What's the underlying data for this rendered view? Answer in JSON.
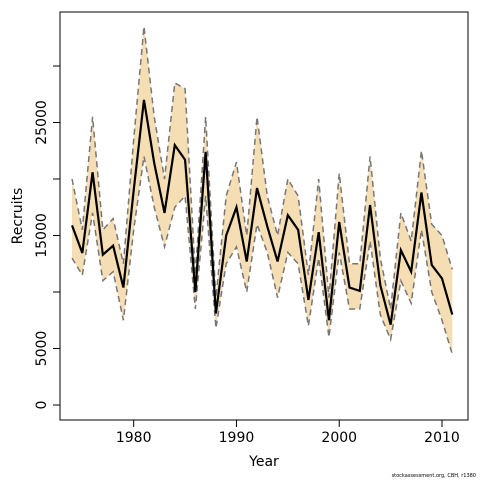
{
  "chart_data": {
    "type": "line",
    "xlabel": "Year",
    "ylabel": "Recruits",
    "footnote": "stockassessment.org, CBH, r1380",
    "x": [
      1974,
      1975,
      1976,
      1977,
      1978,
      1979,
      1980,
      1981,
      1982,
      1983,
      1984,
      1985,
      1986,
      1987,
      1988,
      1989,
      1990,
      1991,
      1992,
      1993,
      1994,
      1995,
      1996,
      1997,
      1998,
      1999,
      2000,
      2001,
      2002,
      2003,
      2004,
      2005,
      2006,
      2007,
      2008,
      2009,
      2010,
      2011
    ],
    "series": [
      {
        "name": "Estimate",
        "color": "#000000",
        "values": [
          15900,
          13450,
          20600,
          13300,
          14100,
          10400,
          19000,
          27000,
          21400,
          17000,
          23000,
          21700,
          10000,
          22400,
          8100,
          15000,
          17500,
          12700,
          19200,
          15800,
          12700,
          16800,
          15500,
          9300,
          15300,
          7500,
          16200,
          10400,
          10100,
          17700,
          10600,
          7100,
          13700,
          11800,
          18800,
          12400,
          11200,
          8000
        ],
        "lower": [
          13000,
          11500,
          17000,
          11000,
          11800,
          7500,
          15500,
          22000,
          17500,
          14000,
          17500,
          18500,
          8500,
          18500,
          6800,
          12500,
          14000,
          10000,
          16000,
          13500,
          9500,
          13500,
          12500,
          7000,
          13000,
          6000,
          13500,
          8500,
          8500,
          14500,
          8000,
          5800,
          11000,
          9000,
          15500,
          10000,
          7500,
          4500
        ],
        "upper": [
          20000,
          15500,
          25500,
          15500,
          16500,
          12500,
          23500,
          33500,
          25500,
          20000,
          28500,
          28000,
          11500,
          25500,
          9500,
          18500,
          21500,
          15000,
          25500,
          18500,
          15000,
          20000,
          18500,
          11500,
          20000,
          9500,
          20500,
          12500,
          12500,
          22000,
          13000,
          8500,
          17000,
          14500,
          22500,
          16000,
          15000,
          12000
        ],
        "band_color": "#f5deb3",
        "bound_color": "#777777"
      }
    ],
    "xlim": [
      1972.83,
      2012.53
    ],
    "ylim": [
      -1327,
      34779
    ],
    "xticks": [
      1980,
      1990,
      2000,
      2010
    ],
    "yticks": [
      0,
      5000,
      15000,
      25000
    ],
    "yticks_unlabeled": [
      10000,
      20000,
      30000
    ]
  }
}
